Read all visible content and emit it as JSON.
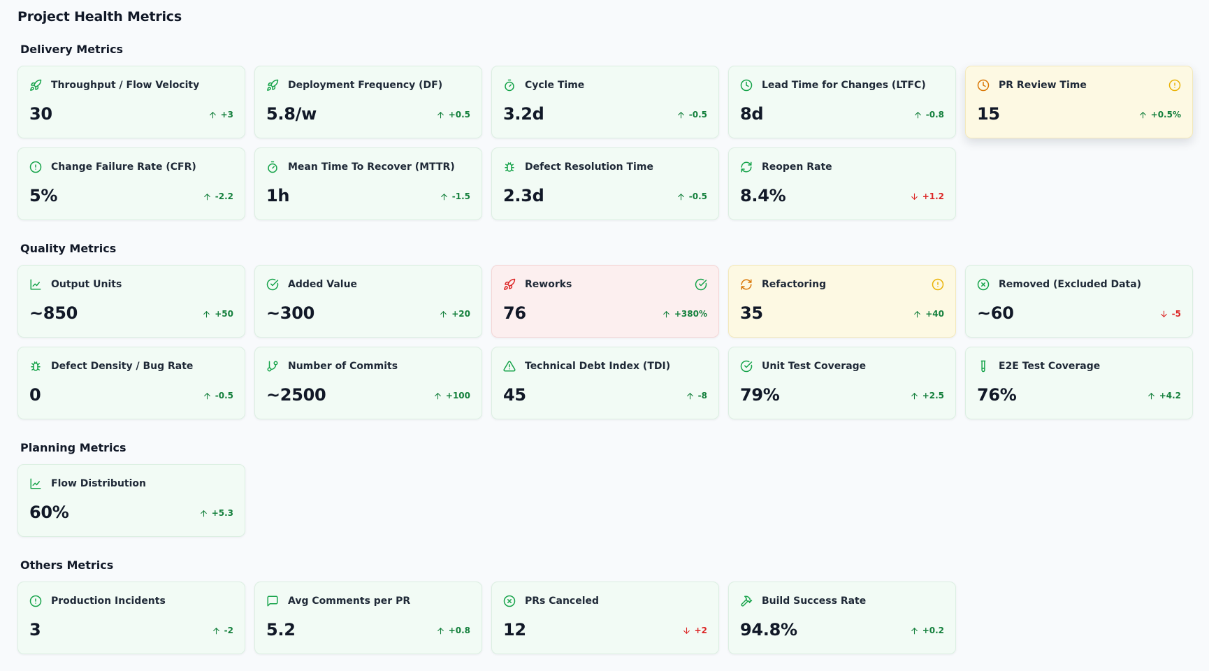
{
  "page_title": "Project Health Metrics",
  "sections": [
    {
      "title": "Delivery Metrics",
      "cards": [
        {
          "icon": "rocket-icon",
          "label": "Throughput / Flow Velocity",
          "value": "30",
          "delta": "+3",
          "direction": "up"
        },
        {
          "icon": "rocket-icon",
          "label": "Deployment Frequency (DF)",
          "value": "5.8/w",
          "delta": "+0.5",
          "direction": "up"
        },
        {
          "icon": "stopwatch-icon",
          "label": "Cycle Time",
          "value": "3.2d",
          "delta": "-0.5",
          "direction": "up"
        },
        {
          "icon": "clock-icon",
          "label": "Lead Time for Changes (LTFC)",
          "value": "8d",
          "delta": "-0.8",
          "direction": "up"
        },
        {
          "icon": "clock-icon",
          "label": "PR Review Time",
          "value": "15",
          "delta": "+0.5%",
          "direction": "up",
          "state": "warn",
          "status_icon": "alert-circle-icon"
        },
        {
          "icon": "alert-circle-icon",
          "label": "Change Failure Rate (CFR)",
          "value": "5%",
          "delta": "-2.2",
          "direction": "up"
        },
        {
          "icon": "stopwatch-icon",
          "label": "Mean Time To Recover (MTTR)",
          "value": "1h",
          "delta": "-1.5",
          "direction": "up"
        },
        {
          "icon": "bug-icon",
          "label": "Defect Resolution Time",
          "value": "2.3d",
          "delta": "-0.5",
          "direction": "up"
        },
        {
          "icon": "refresh-icon",
          "label": "Reopen Rate",
          "value": "8.4%",
          "delta": "+1.2",
          "direction": "down"
        }
      ]
    },
    {
      "title": "Quality Metrics",
      "cards": [
        {
          "icon": "line-chart-icon",
          "label": "Output Units",
          "value": "~850",
          "delta": "+50",
          "direction": "up"
        },
        {
          "icon": "check-circle-icon",
          "label": "Added Value",
          "value": "~300",
          "delta": "+20",
          "direction": "up"
        },
        {
          "icon": "rocket-icon",
          "label": "Reworks",
          "value": "76",
          "delta": "+380%",
          "direction": "up",
          "state": "alert",
          "status_icon": "check-circle-icon"
        },
        {
          "icon": "refresh-icon",
          "label": "Refactoring",
          "value": "35",
          "delta": "+40",
          "direction": "up",
          "state": "warn",
          "status_icon": "alert-circle-icon"
        },
        {
          "icon": "x-circle-icon",
          "label": "Removed (Excluded Data)",
          "value": "~60",
          "delta": "-5",
          "direction": "down"
        },
        {
          "icon": "bug-icon",
          "label": "Defect Density / Bug Rate",
          "value": "0",
          "delta": "-0.5",
          "direction": "up"
        },
        {
          "icon": "git-branch-icon",
          "label": "Number of Commits",
          "value": "~2500",
          "delta": "+100",
          "direction": "up"
        },
        {
          "icon": "warning-triangle-icon",
          "label": "Technical Debt Index (TDI)",
          "value": "45",
          "delta": "-8",
          "direction": "up"
        },
        {
          "icon": "check-circle-icon",
          "label": "Unit Test Coverage",
          "value": "79%",
          "delta": "+2.5",
          "direction": "up"
        },
        {
          "icon": "test-tube-icon",
          "label": "E2E Test Coverage",
          "value": "76%",
          "delta": "+4.2",
          "direction": "up"
        }
      ]
    },
    {
      "title": "Planning Metrics",
      "cards": [
        {
          "icon": "line-chart-icon",
          "label": "Flow Distribution",
          "value": "60%",
          "delta": "+5.3",
          "direction": "up"
        }
      ]
    },
    {
      "title": "Others Metrics",
      "cards": [
        {
          "icon": "alert-circle-icon",
          "label": "Production Incidents",
          "value": "3",
          "delta": "-2",
          "direction": "up"
        },
        {
          "icon": "message-square-icon",
          "label": "Avg Comments per PR",
          "value": "5.2",
          "delta": "+0.8",
          "direction": "up"
        },
        {
          "icon": "x-circle-icon",
          "label": "PRs Canceled",
          "value": "12",
          "delta": "+2",
          "direction": "down"
        },
        {
          "icon": "hammer-icon",
          "label": "Build Success Rate",
          "value": "94.8%",
          "delta": "+0.2",
          "direction": "up"
        }
      ]
    }
  ],
  "colors": {
    "icon_green": "#16a34a",
    "delta_up": "#15803d",
    "delta_down": "#dc2626",
    "rework_icon": "#dc2626",
    "refactor_icon": "#d97706",
    "warn_status": "#eab308"
  }
}
